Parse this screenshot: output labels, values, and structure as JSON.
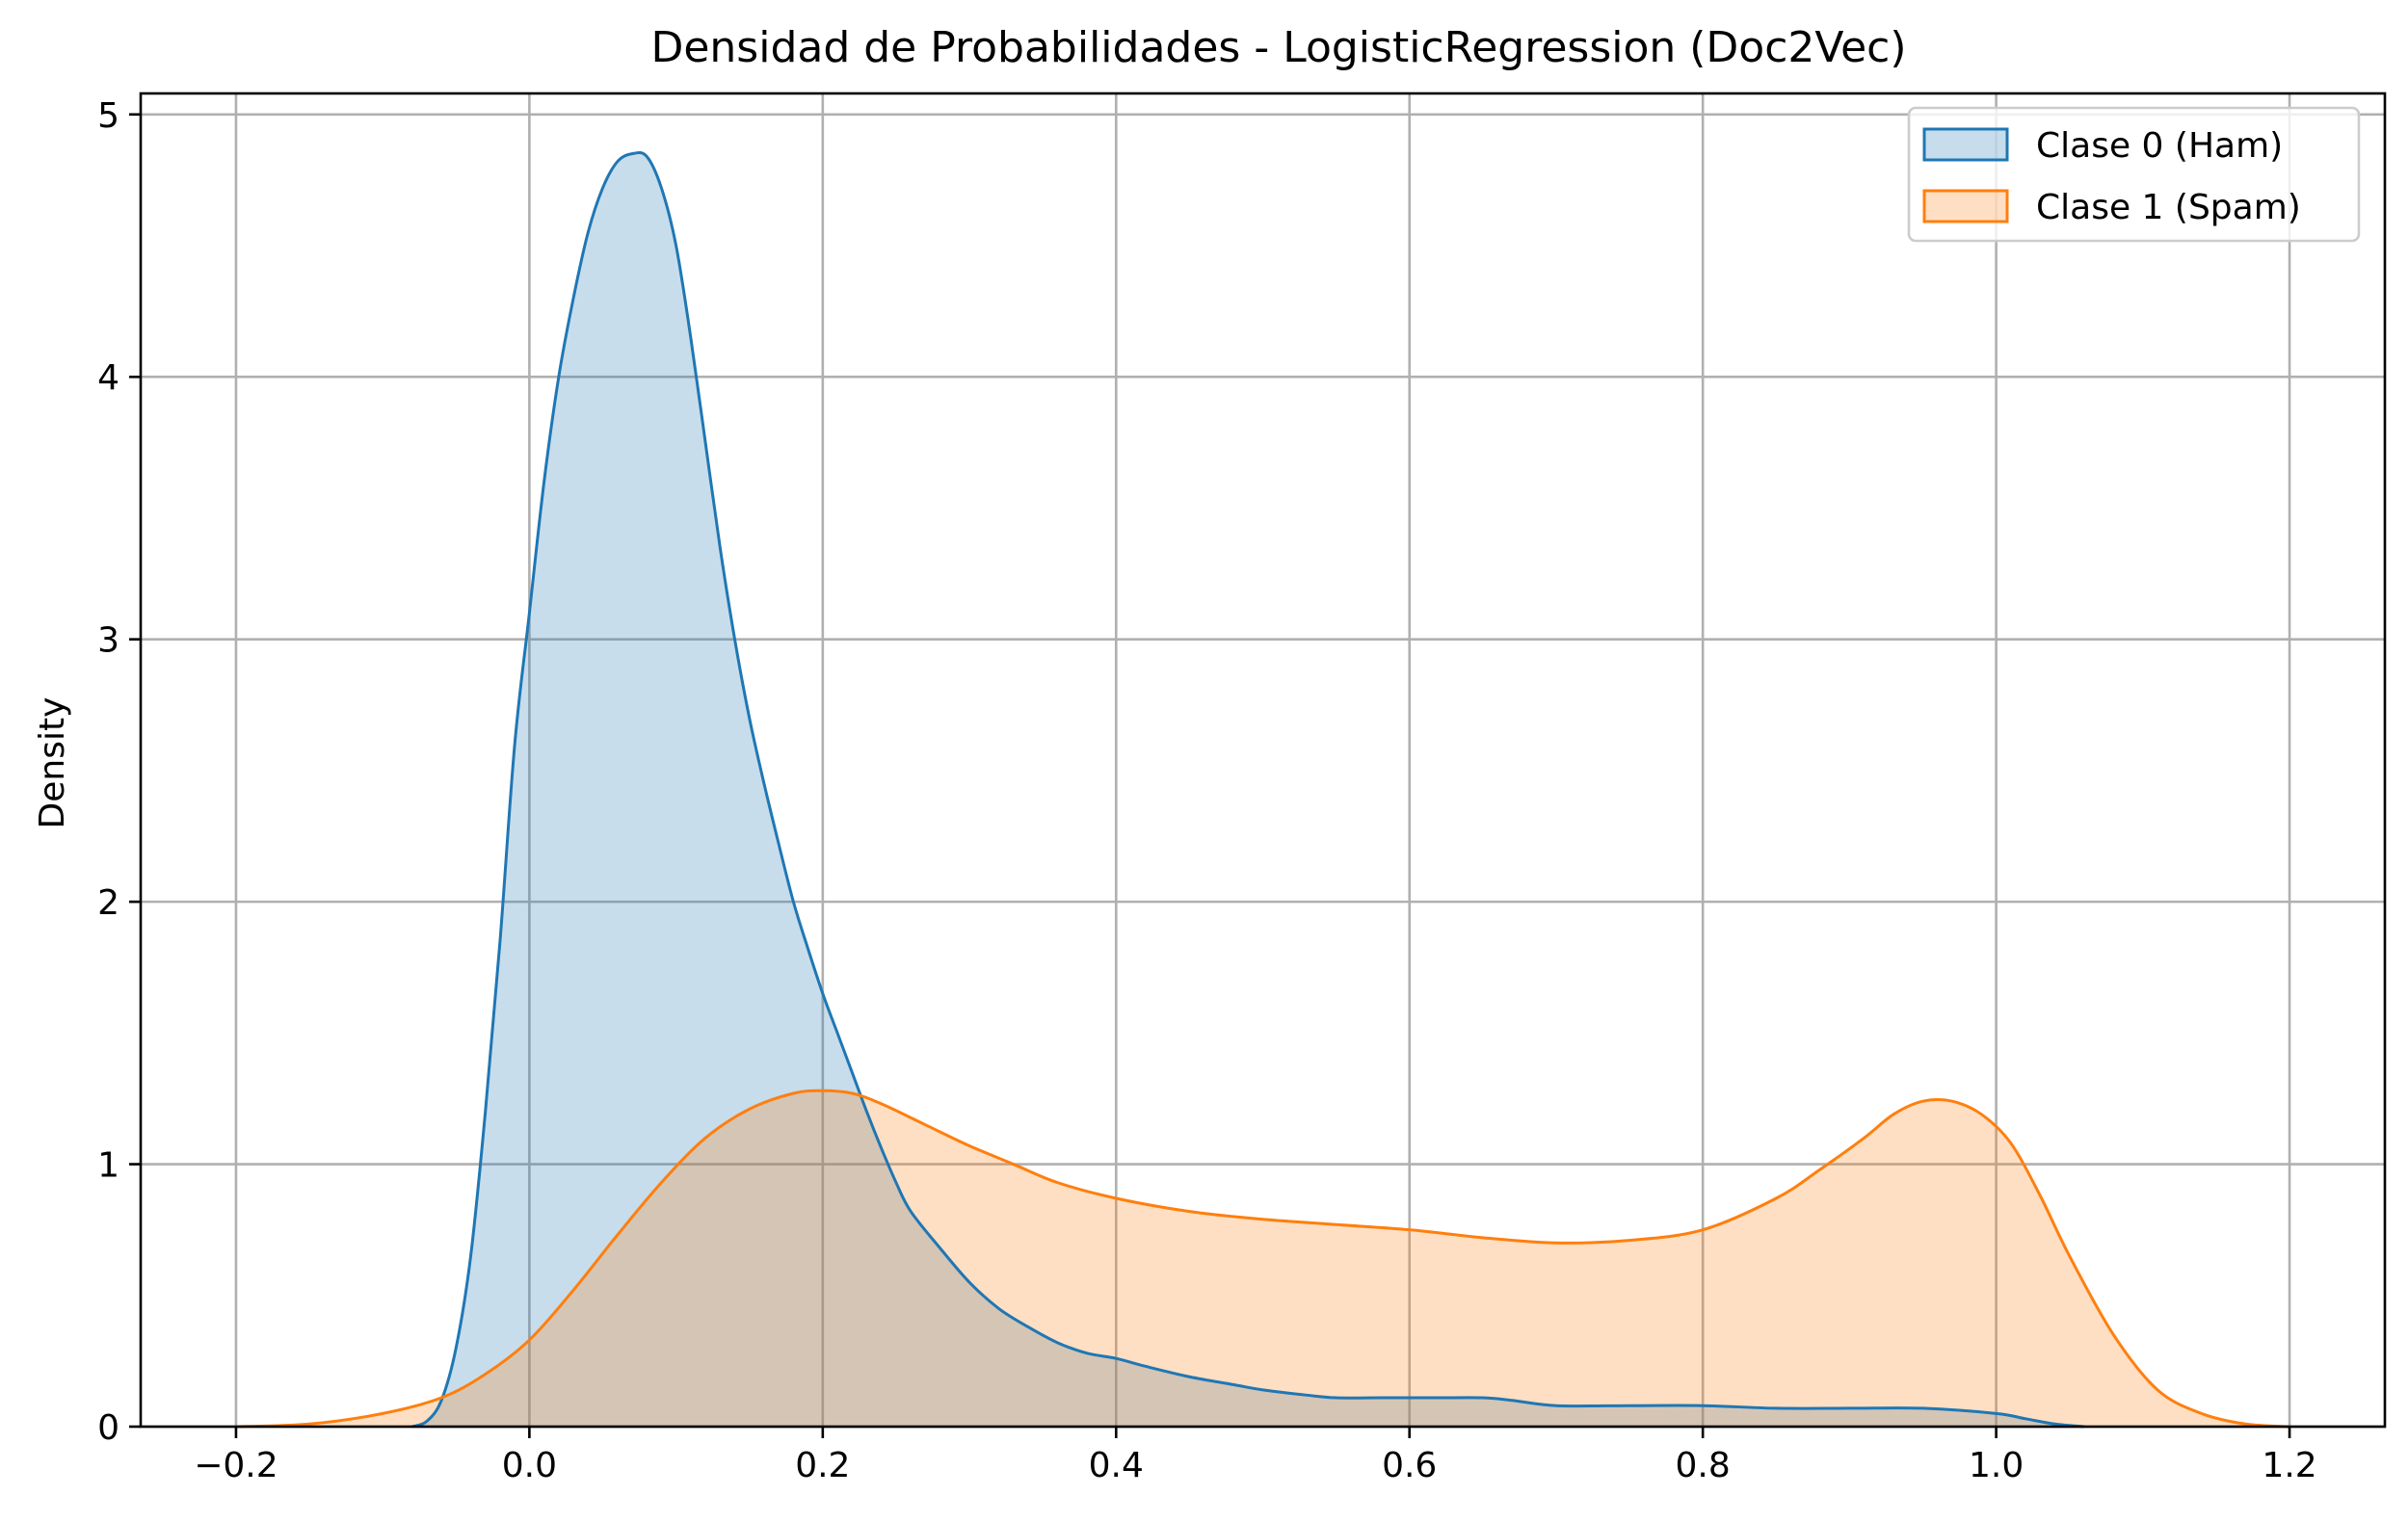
{
  "chart_data": {
    "type": "area",
    "title": "Densidad de Probabilidades - LogisticRegression (Doc2Vec)",
    "xlabel": "",
    "ylabel": "Density",
    "xlim": [
      -0.265,
      1.265
    ],
    "ylim": [
      0,
      5.08
    ],
    "xticks": [
      -0.2,
      0.0,
      0.2,
      0.4,
      0.6,
      0.8,
      1.0,
      1.2
    ],
    "xtick_labels": [
      "−0.2",
      "0.0",
      "0.2",
      "0.4",
      "0.6",
      "0.8",
      "1.0",
      "1.2"
    ],
    "yticks": [
      0,
      1,
      2,
      3,
      4,
      5
    ],
    "ytick_labels": [
      "0",
      "1",
      "2",
      "3",
      "4",
      "5"
    ],
    "grid": true,
    "legend_position": "top-right",
    "series": [
      {
        "name": "Clase 0 (Ham)",
        "color": "#1f77b4",
        "fill_opacity": 0.25,
        "x": [
          -0.08,
          -0.07,
          -0.06,
          -0.05,
          -0.04,
          -0.03,
          -0.02,
          -0.01,
          0.0,
          0.01,
          0.02,
          0.03,
          0.04,
          0.05,
          0.06,
          0.07,
          0.08,
          0.09,
          0.1,
          0.11,
          0.12,
          0.13,
          0.14,
          0.15,
          0.16,
          0.17,
          0.18,
          0.19,
          0.2,
          0.21,
          0.22,
          0.23,
          0.24,
          0.25,
          0.26,
          0.28,
          0.3,
          0.32,
          0.34,
          0.36,
          0.38,
          0.4,
          0.42,
          0.45,
          0.48,
          0.5,
          0.53,
          0.55,
          0.58,
          0.6,
          0.62,
          0.65,
          0.67,
          0.7,
          0.75,
          0.8,
          0.85,
          0.9,
          0.95,
          1.0,
          1.02,
          1.04,
          1.06
        ],
        "y": [
          0.0,
          0.02,
          0.1,
          0.3,
          0.65,
          1.2,
          1.85,
          2.6,
          3.1,
          3.6,
          4.0,
          4.3,
          4.55,
          4.72,
          4.82,
          4.85,
          4.84,
          4.72,
          4.5,
          4.15,
          3.75,
          3.35,
          3.0,
          2.7,
          2.45,
          2.22,
          2.0,
          1.82,
          1.65,
          1.5,
          1.35,
          1.2,
          1.06,
          0.93,
          0.82,
          0.68,
          0.55,
          0.45,
          0.38,
          0.32,
          0.28,
          0.26,
          0.23,
          0.19,
          0.16,
          0.14,
          0.12,
          0.11,
          0.11,
          0.11,
          0.11,
          0.11,
          0.1,
          0.08,
          0.08,
          0.08,
          0.07,
          0.07,
          0.07,
          0.05,
          0.03,
          0.01,
          0.0
        ]
      },
      {
        "name": "Clase 1 (Spam)",
        "color": "#ff7f0e",
        "fill_opacity": 0.25,
        "x": [
          -0.2,
          -0.15,
          -0.1,
          -0.06,
          -0.03,
          0.0,
          0.03,
          0.06,
          0.09,
          0.12,
          0.15,
          0.18,
          0.2,
          0.22,
          0.24,
          0.27,
          0.3,
          0.33,
          0.36,
          0.4,
          0.45,
          0.5,
          0.55,
          0.6,
          0.65,
          0.7,
          0.75,
          0.8,
          0.85,
          0.88,
          0.91,
          0.93,
          0.95,
          0.97,
          0.99,
          1.01,
          1.03,
          1.05,
          1.08,
          1.11,
          1.14,
          1.17,
          1.2
        ],
        "y": [
          0.0,
          0.01,
          0.05,
          0.11,
          0.2,
          0.33,
          0.52,
          0.73,
          0.93,
          1.1,
          1.21,
          1.27,
          1.28,
          1.27,
          1.23,
          1.15,
          1.07,
          1.0,
          0.93,
          0.87,
          0.82,
          0.79,
          0.77,
          0.75,
          0.72,
          0.7,
          0.71,
          0.75,
          0.87,
          0.98,
          1.1,
          1.19,
          1.24,
          1.24,
          1.19,
          1.08,
          0.88,
          0.65,
          0.35,
          0.14,
          0.05,
          0.01,
          0.0
        ]
      }
    ]
  }
}
